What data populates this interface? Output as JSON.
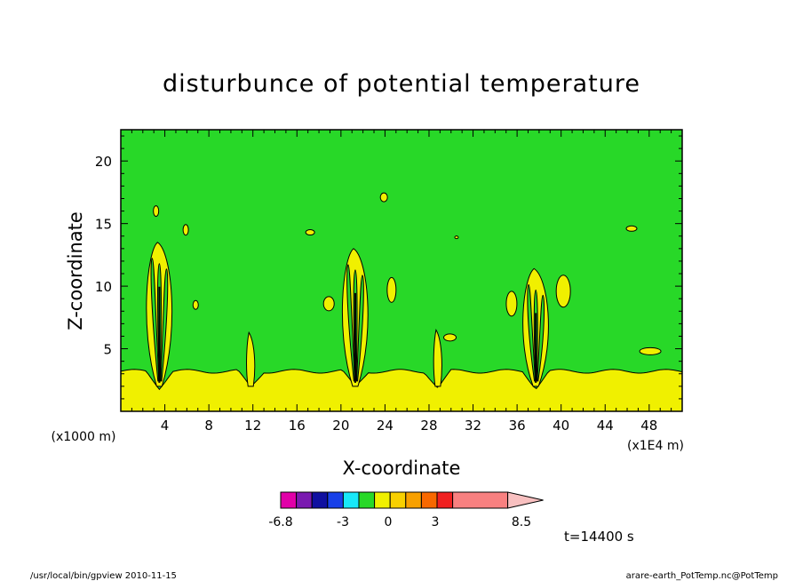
{
  "chart_data": {
    "type": "heatmap",
    "title": "disturbunce of potential temperature",
    "xlabel": "X-coordinate",
    "ylabel": "Z-coordinate",
    "x_unit": "(x1E4 m)",
    "y_unit": "(x1000 m)",
    "xlim": [
      0,
      51
    ],
    "ylim": [
      0,
      22.5
    ],
    "x_ticks": [
      4,
      8,
      12,
      16,
      20,
      24,
      28,
      32,
      36,
      40,
      44,
      48
    ],
    "x_tick_labels": [
      "4",
      "8",
      "12",
      "16",
      "20",
      "24",
      "28",
      "32",
      "36",
      "40",
      "44",
      "48"
    ],
    "y_ticks": [
      5,
      10,
      15,
      20
    ],
    "y_tick_labels": [
      "5",
      "10",
      "15",
      "20"
    ],
    "colorbar": {
      "colors": [
        "#e000a8",
        "#7a1ab0",
        "#1010a0",
        "#1840e8",
        "#18e8f8",
        "#28d828",
        "#f0f000",
        "#f8d000",
        "#f8a000",
        "#f86800",
        "#f02020",
        "#f88080"
      ],
      "tick_labels": [
        "-6.8",
        "-3",
        "0",
        "3",
        "8.5"
      ],
      "extend": "max"
    },
    "background_value_color": "#28d828",
    "positive_region_color": "#f0f000",
    "features": [
      {
        "type": "surface_layer",
        "z_top_approx": 3.2
      },
      {
        "type": "plume",
        "x": 3.5,
        "z_top": 13.5
      },
      {
        "type": "plume",
        "x": 11.8,
        "z_top": 6.3
      },
      {
        "type": "plume",
        "x": 21.3,
        "z_top": 13.0
      },
      {
        "type": "plume",
        "x": 28.8,
        "z_top": 6.5
      },
      {
        "type": "plume",
        "x": 37.7,
        "z_top": 11.4
      }
    ]
  },
  "annotations": {
    "time": "t=14400 s",
    "program": "/usr/local/bin/gpview  2010-11-15",
    "source": "arare-earth_PotTemp.nc@PotTemp"
  }
}
